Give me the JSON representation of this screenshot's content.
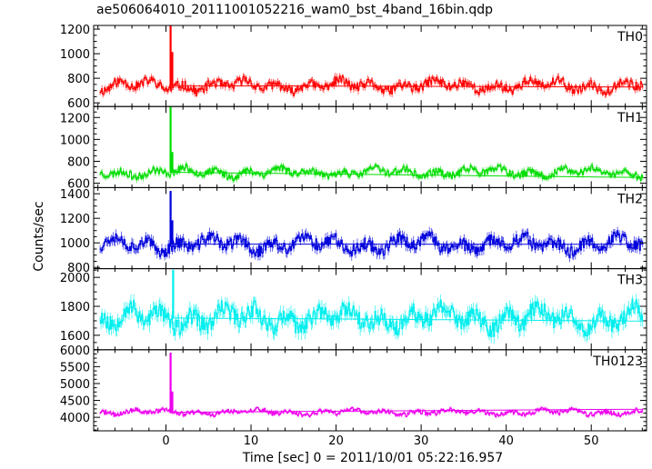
{
  "chart_data": {
    "type": "line",
    "title": "ae506064010_20111001052216_wam0_bst_4band_16bin.qdp",
    "xlabel": "Time [sec] 0 = 2011/10/01 05:22:16.957",
    "ylabel": "Counts/sec",
    "xlim": [
      -8.5,
      56.5
    ],
    "x_ticks": [
      0,
      10,
      20,
      30,
      40,
      50
    ],
    "x_tick_labels": [
      "0",
      "10",
      "20",
      "30",
      "40",
      "50"
    ],
    "grid": false,
    "panels": [
      {
        "name": "TH0",
        "color": "#ff0000",
        "ylim": [
          570,
          1230
        ],
        "y_ticks": [
          600,
          800,
          1000,
          1200
        ],
        "y_tick_labels": [
          "600",
          "800",
          "1000",
          "1200"
        ],
        "baseline": 740,
        "noise": 45,
        "spikes": [
          {
            "x": 0.5,
            "y": 1230
          },
          {
            "x": 0.7,
            "y": 1010
          }
        ],
        "x_start": -7.8,
        "seed": 11
      },
      {
        "name": "TH1",
        "color": "#00dd00",
        "ylim": [
          560,
          1300
        ],
        "y_ticks": [
          600,
          800,
          1000,
          1200
        ],
        "y_tick_labels": [
          "600",
          "800",
          "1000",
          "1200"
        ],
        "baseline": 700,
        "noise": 40,
        "spikes": [
          {
            "x": 0.5,
            "y": 1300
          },
          {
            "x": 0.7,
            "y": 880
          }
        ],
        "x_start": -7.8,
        "seed": 23
      },
      {
        "name": "TH2",
        "color": "#0000dd",
        "ylim": [
          790,
          1450
        ],
        "y_ticks": [
          800,
          1000,
          1200,
          1400
        ],
        "y_tick_labels": [
          "800",
          "1000",
          "1200",
          "1400"
        ],
        "baseline": 990,
        "noise": 60,
        "spikes": [
          {
            "x": 0.5,
            "y": 1420
          },
          {
            "x": 0.7,
            "y": 1180
          }
        ],
        "x_start": -7.8,
        "seed": 37
      },
      {
        "name": "TH3",
        "color": "#00eeee",
        "ylim": [
          1500,
          2060
        ],
        "y_ticks": [
          1600,
          1800,
          2000
        ],
        "y_tick_labels": [
          "1600",
          "1800",
          "2000"
        ],
        "baseline": 1720,
        "noise": 75,
        "spikes": [
          {
            "x": 0.8,
            "y": 2050
          }
        ],
        "x_start": -7.8,
        "seed": 53
      },
      {
        "name": "TH0123",
        "color": "#ee00ee",
        "ylim": [
          3600,
          6000
        ],
        "y_ticks": [
          4000,
          4500,
          5000,
          5500,
          6000
        ],
        "y_tick_labels": [
          "4000",
          "4500",
          "5000",
          "5500",
          "6000"
        ],
        "baseline": 4150,
        "noise": 80,
        "spikes": [
          {
            "x": 0.5,
            "y": 5900
          },
          {
            "x": 0.7,
            "y": 4750
          }
        ],
        "x_start": -7.8,
        "seed": 71
      }
    ]
  }
}
